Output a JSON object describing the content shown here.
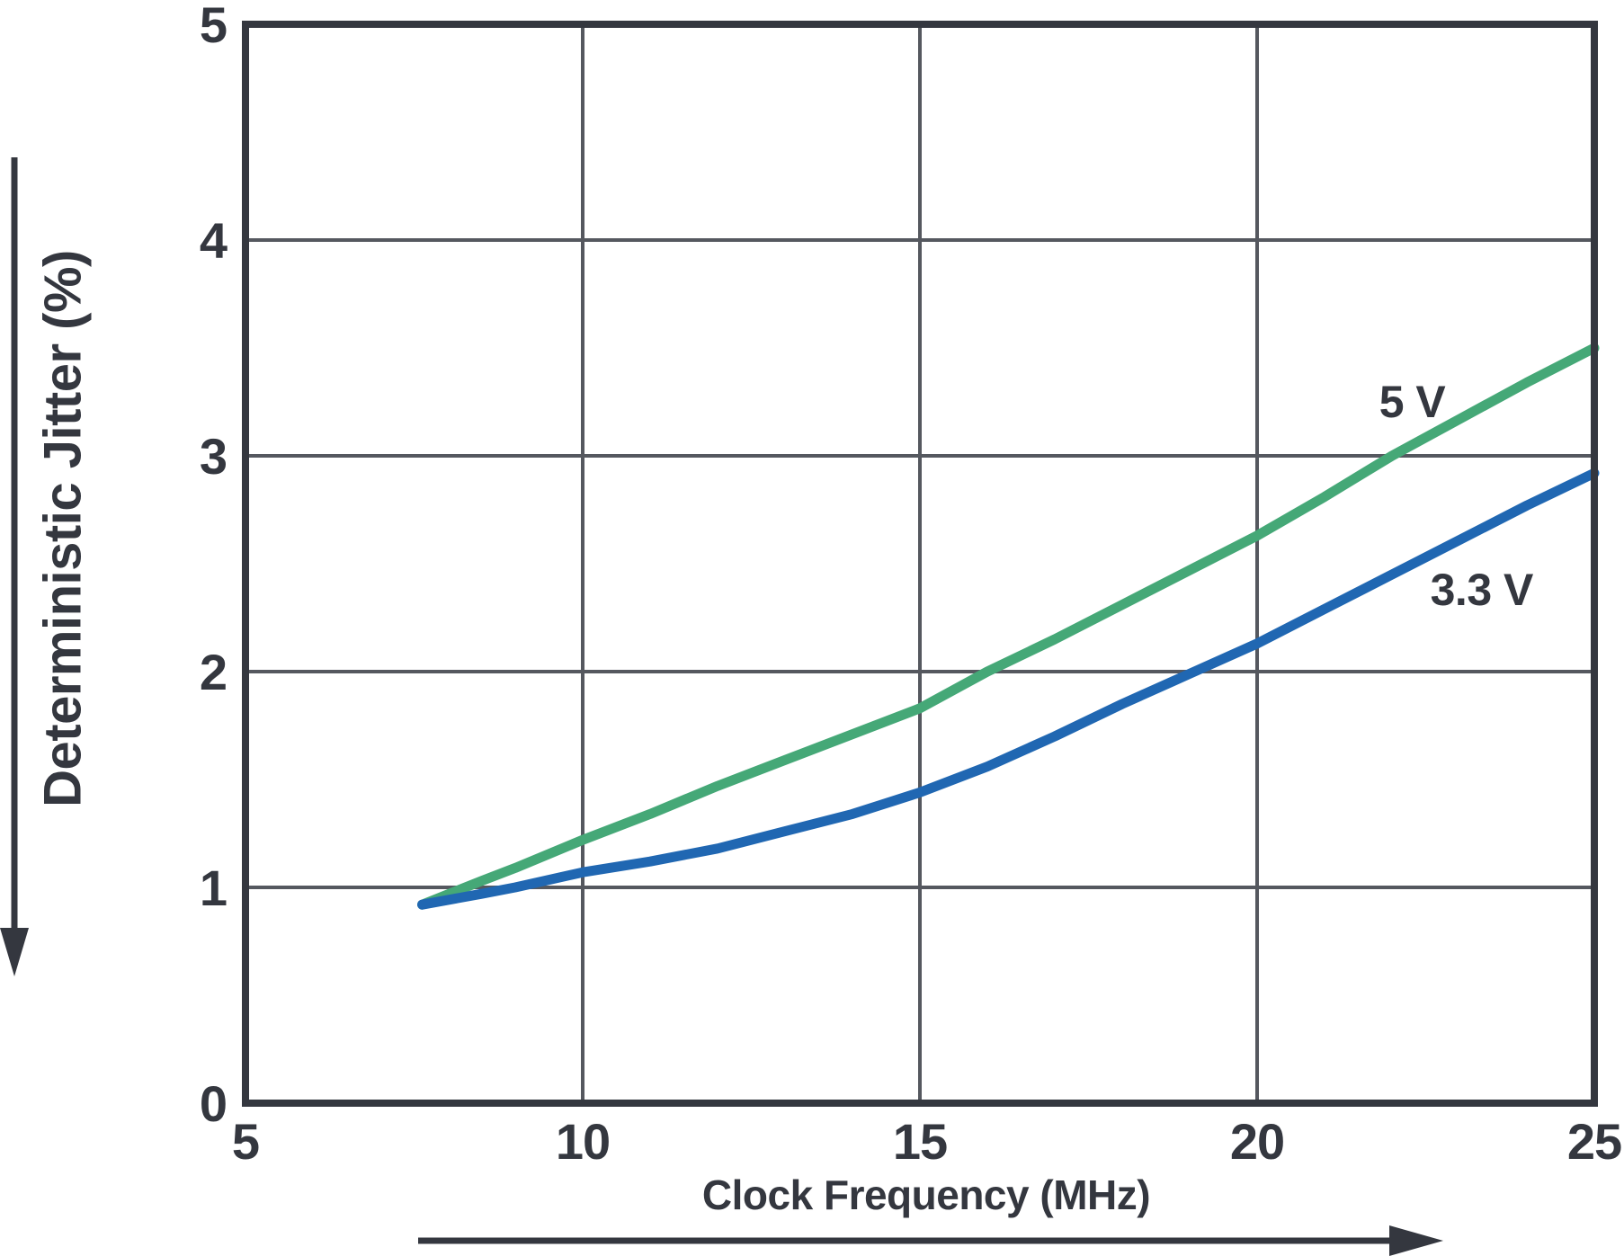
{
  "chart_data": {
    "type": "line",
    "title": "",
    "xlabel": "Clock Frequency (MHz)",
    "ylabel": "Deterministic Jitter (%)",
    "xlim": [
      5,
      25
    ],
    "ylim": [
      0,
      5
    ],
    "x_ticks": [
      5,
      10,
      15,
      20,
      25
    ],
    "y_ticks": [
      0,
      1,
      2,
      3,
      4,
      5
    ],
    "grid": true,
    "legend_position": "inline-labels",
    "series": [
      {
        "name": "5 V",
        "color": "#45a877",
        "label_anchor": {
          "x": 22.3,
          "y": 3.25
        },
        "points": [
          [
            7.62,
            0.92
          ],
          [
            8.5,
            1.03
          ],
          [
            9,
            1.09
          ],
          [
            10,
            1.22
          ],
          [
            11,
            1.34
          ],
          [
            12,
            1.47
          ],
          [
            13,
            1.59
          ],
          [
            14,
            1.71
          ],
          [
            15,
            1.83
          ],
          [
            16,
            2.0
          ],
          [
            17,
            2.15
          ],
          [
            18,
            2.31
          ],
          [
            19,
            2.47
          ],
          [
            20,
            2.63
          ],
          [
            21,
            2.81
          ],
          [
            22,
            3.0
          ],
          [
            23,
            3.17
          ],
          [
            24,
            3.34
          ],
          [
            25,
            3.5
          ]
        ]
      },
      {
        "name": "3.3 V",
        "color": "#2067b2",
        "label_anchor": {
          "x": 23.33,
          "y": 2.38
        },
        "points": [
          [
            7.62,
            0.92
          ],
          [
            8.5,
            0.97
          ],
          [
            9,
            1.0
          ],
          [
            10,
            1.07
          ],
          [
            11,
            1.12
          ],
          [
            12,
            1.18
          ],
          [
            13,
            1.26
          ],
          [
            14,
            1.34
          ],
          [
            15,
            1.44
          ],
          [
            16,
            1.56
          ],
          [
            17,
            1.7
          ],
          [
            18,
            1.85
          ],
          [
            19,
            1.99
          ],
          [
            20,
            2.13
          ],
          [
            21,
            2.29
          ],
          [
            22,
            2.45
          ],
          [
            23,
            2.61
          ],
          [
            24,
            2.77
          ],
          [
            25,
            2.92
          ]
        ]
      }
    ]
  },
  "style": {
    "axis_color": "#34373f",
    "grid_color": "#55585f",
    "background": "#ffffff",
    "series_line_width": 11
  },
  "annotations": {
    "x_axis_direction_arrow": "right",
    "y_axis_direction_arrow": "down"
  }
}
